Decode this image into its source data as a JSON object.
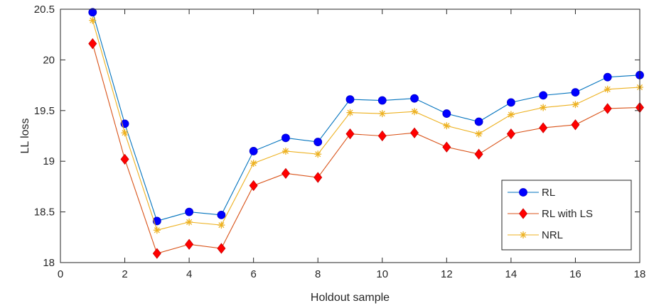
{
  "chart_data": {
    "type": "line",
    "title": "",
    "xlabel": "Holdout sample",
    "ylabel": "LL loss",
    "xlim": [
      0,
      18
    ],
    "ylim": [
      18,
      20.5
    ],
    "xticks": [
      0,
      2,
      4,
      6,
      8,
      10,
      12,
      14,
      16,
      18
    ],
    "yticks": [
      18,
      18.5,
      19,
      19.5,
      20,
      20.5
    ],
    "xtick_labels": [
      "0",
      "2",
      "4",
      "6",
      "8",
      "10",
      "12",
      "14",
      "16",
      "18"
    ],
    "ytick_labels": [
      "18",
      "18.5",
      "19",
      "19.5",
      "20",
      "20.5"
    ],
    "grid": false,
    "legend_position": "bottom-right",
    "x": [
      1,
      2,
      3,
      4,
      5,
      6,
      7,
      8,
      9,
      10,
      11,
      12,
      13,
      14,
      15,
      16,
      17,
      18
    ],
    "series": [
      {
        "name": "RL",
        "color": "#0072BD",
        "marker": "circle",
        "marker_color": "#0000FF",
        "values": [
          20.47,
          19.37,
          18.41,
          18.5,
          18.47,
          19.1,
          19.23,
          19.19,
          19.61,
          19.6,
          19.62,
          19.47,
          19.39,
          19.58,
          19.65,
          19.68,
          19.83,
          19.85
        ]
      },
      {
        "name": "RL with LS",
        "color": "#D95319",
        "marker": "diamond",
        "marker_color": "#FF0000",
        "values": [
          20.16,
          19.02,
          18.09,
          18.18,
          18.14,
          18.76,
          18.88,
          18.84,
          19.27,
          19.25,
          19.28,
          19.14,
          19.07,
          19.27,
          19.33,
          19.36,
          19.52,
          19.53
        ]
      },
      {
        "name": "NRL",
        "color": "#EDB120",
        "marker": "asterisk",
        "marker_color": "#EDB120",
        "values": [
          20.39,
          19.28,
          18.32,
          18.4,
          18.37,
          18.98,
          19.1,
          19.07,
          19.48,
          19.47,
          19.49,
          19.35,
          19.27,
          19.46,
          19.53,
          19.56,
          19.71,
          19.73
        ]
      }
    ]
  }
}
